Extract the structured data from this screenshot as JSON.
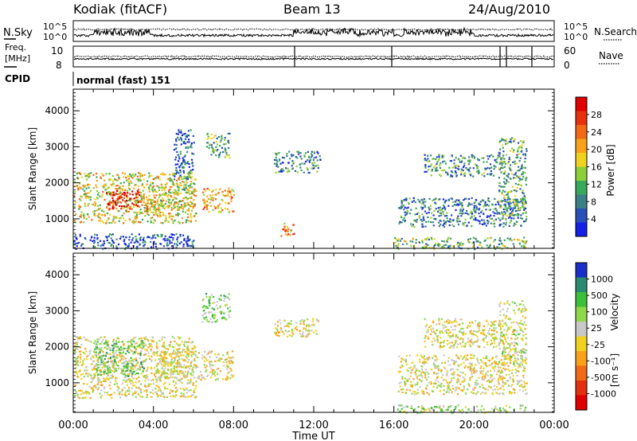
{
  "header": {
    "station": "Kodiak (fitACF)",
    "beam": "Beam 13",
    "date": "24/Aug/2010"
  },
  "noise_panel": {
    "left_label": "N.Sky",
    "right_label": "N.Search",
    "ticks_left": [
      "10^5",
      "10^0"
    ],
    "ticks_right": [
      "10^5",
      "10^0"
    ]
  },
  "freq_panel": {
    "left_label_line1": "Freq.",
    "left_label_line2": "[MHz]",
    "left_ticks": [
      "10",
      "8"
    ],
    "right_label": "Nave",
    "right_ticks": [
      "60",
      "0"
    ]
  },
  "cpid": {
    "label": "CPID",
    "value": "normal (fast) 151"
  },
  "chart_data": [
    {
      "type": "heatmap",
      "name": "power",
      "ylabel": "Slant Range [km]",
      "xlabel": "",
      "x_ticks": [
        "00:00",
        "04:00",
        "08:00",
        "12:00",
        "16:00",
        "20:00",
        "00:00"
      ],
      "xlim_hours": [
        0,
        24
      ],
      "y_ticks": [
        1000,
        2000,
        3000,
        4000
      ],
      "ylim": [
        180,
        4600
      ],
      "colorbar_label": "Power [dB]",
      "colorbar_ticks": [
        "4",
        "8",
        "12",
        "16",
        "20",
        "24",
        "28"
      ],
      "colorbar_colors": [
        "#1420e6",
        "#2a4fb8",
        "#3c7f86",
        "#3aa85a",
        "#8ccf3a",
        "#f0d11e",
        "#f7a21a",
        "#f36a16",
        "#e8310f",
        "#e00000"
      ],
      "scatter_regions": [
        {
          "t0": 0.0,
          "t1": 6.1,
          "r0": 900,
          "r1": 2300,
          "level": 0.55
        },
        {
          "t0": 1.6,
          "t1": 3.3,
          "r0": 1300,
          "r1": 1800,
          "level": 0.95
        },
        {
          "t0": 3.3,
          "t1": 4.3,
          "r0": 1100,
          "r1": 1700,
          "level": 0.6
        },
        {
          "t0": 4.3,
          "t1": 6.1,
          "r0": 1300,
          "r1": 2000,
          "level": 0.5
        },
        {
          "t0": 5.0,
          "t1": 6.0,
          "r0": 2100,
          "r1": 3500,
          "level": 0.2
        },
        {
          "t0": 6.4,
          "t1": 8.0,
          "r0": 1200,
          "r1": 1900,
          "level": 0.65
        },
        {
          "t0": 6.6,
          "t1": 7.8,
          "r0": 2700,
          "r1": 3400,
          "level": 0.35
        },
        {
          "t0": 0.0,
          "t1": 6.0,
          "r0": 180,
          "r1": 600,
          "level": 0.15
        },
        {
          "t0": 10.0,
          "t1": 12.3,
          "r0": 2300,
          "r1": 2900,
          "level": 0.25
        },
        {
          "t0": 10.3,
          "t1": 11.0,
          "r0": 500,
          "r1": 900,
          "level": 0.7
        },
        {
          "t0": 16.0,
          "t1": 22.6,
          "r0": 180,
          "r1": 500,
          "level": 0.4
        },
        {
          "t0": 16.2,
          "t1": 22.6,
          "r0": 800,
          "r1": 1600,
          "level": 0.25
        },
        {
          "t0": 17.5,
          "t1": 21.5,
          "r0": 2200,
          "r1": 2800,
          "level": 0.3
        },
        {
          "t0": 21.2,
          "t1": 22.6,
          "r0": 1000,
          "r1": 3300,
          "level": 0.35
        }
      ]
    },
    {
      "type": "heatmap",
      "name": "velocity",
      "ylabel": "Slant Range [km]",
      "xlabel": "Time UT",
      "x_ticks": [
        "00:00",
        "04:00",
        "08:00",
        "12:00",
        "16:00",
        "20:00",
        "00:00"
      ],
      "xlim_hours": [
        0,
        24
      ],
      "y_ticks": [
        1000,
        2000,
        3000,
        4000
      ],
      "ylim": [
        180,
        4600
      ],
      "colorbar_label": "Velocity",
      "colorbar_units": "[m s⁻¹]",
      "colorbar_ticks": [
        "1000",
        "500",
        "100",
        "25",
        "-25",
        "-100",
        "-500",
        "-1000"
      ],
      "colorbar_colors": [
        "#1a2ec8",
        "#2c8a6e",
        "#3cbf3a",
        "#8fd84a",
        "#c8c8c8",
        "#f0d11e",
        "#f7a21a",
        "#f06a18",
        "#e23010",
        "#e00000"
      ],
      "scatter_regions": [
        {
          "t0": 0.0,
          "t1": 6.1,
          "r0": 600,
          "r1": 2300,
          "level": 0.5
        },
        {
          "t0": 1.0,
          "t1": 3.5,
          "r0": 1200,
          "r1": 2200,
          "level": 0.7
        },
        {
          "t0": 4.0,
          "t1": 8.0,
          "r0": 1100,
          "r1": 1900,
          "level": 0.5
        },
        {
          "t0": 6.4,
          "t1": 7.8,
          "r0": 2700,
          "r1": 3500,
          "level": 0.65
        },
        {
          "t0": 10.0,
          "t1": 12.3,
          "r0": 2300,
          "r1": 2800,
          "level": 0.5
        },
        {
          "t0": 16.0,
          "t1": 22.6,
          "r0": 180,
          "r1": 400,
          "level": 0.62
        },
        {
          "t0": 16.2,
          "t1": 22.6,
          "r0": 700,
          "r1": 1800,
          "level": 0.5
        },
        {
          "t0": 17.5,
          "t1": 21.5,
          "r0": 2000,
          "r1": 2800,
          "level": 0.5
        },
        {
          "t0": 21.2,
          "t1": 22.6,
          "r0": 1500,
          "r1": 3300,
          "level": 0.55
        }
      ]
    }
  ]
}
